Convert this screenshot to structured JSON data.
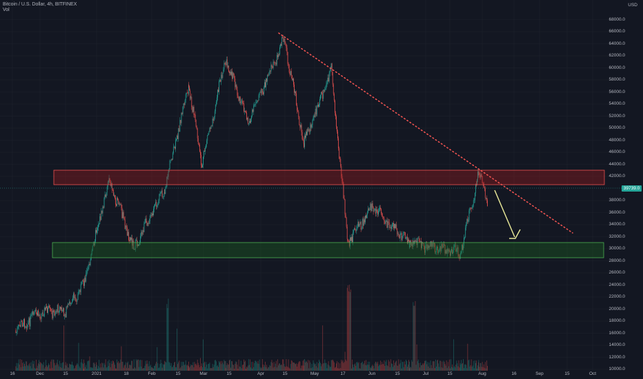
{
  "legend": {
    "title": "Bitcoin / U.S. Dollar, 4h, BITFINEX",
    "volume": "Vol"
  },
  "currency": "USD",
  "last_price": "39739.0",
  "colors": {
    "background": "#131722",
    "up": "#26a69a",
    "down": "#ef5350",
    "resistance_fill": "#b71c1c",
    "support_fill": "#1b5e20",
    "trendline": "#ef5350",
    "arrow": "#e6e697"
  },
  "price_axis": [
    "68000.0",
    "66000.0",
    "64000.0",
    "62000.0",
    "60000.0",
    "58000.0",
    "56000.0",
    "54000.0",
    "52000.0",
    "50000.0",
    "48000.0",
    "46000.0",
    "44000.0",
    "42000.0",
    "38000.0",
    "36000.0",
    "34000.0",
    "32000.0",
    "30000.0",
    "28000.0",
    "26000.0",
    "24000.0",
    "22000.0",
    "20000.0",
    "18000.0",
    "16000.0",
    "14000.0",
    "12000.0",
    "10000.0"
  ],
  "time_axis": [
    "16",
    "Dec",
    "15",
    "2021",
    "18",
    "Feb",
    "15",
    "Mar",
    "15",
    "Apr",
    "15",
    "May",
    "17",
    "Jun",
    "15",
    "Jul",
    "15",
    "Aug",
    "16",
    "Sep",
    "15",
    "Oct"
  ],
  "chart_data": {
    "type": "candlestick",
    "symbol": "Bitcoin / U.S. Dollar, 4h, BITFINEX",
    "ylim": [
      10000,
      70000
    ],
    "key_points": [
      {
        "date": "Nov 16",
        "price": 16500
      },
      {
        "date": "Dec 1",
        "price": 19500
      },
      {
        "date": "Dec 15",
        "price": 19800
      },
      {
        "date": "Dec 25",
        "price": 24000
      },
      {
        "date": "Jan 8",
        "price": 41500
      },
      {
        "date": "Jan 22",
        "price": 30000
      },
      {
        "date": "Feb 8",
        "price": 40000
      },
      {
        "date": "Feb 21",
        "price": 57000
      },
      {
        "date": "Feb 28",
        "price": 44000
      },
      {
        "date": "Mar 13",
        "price": 61500
      },
      {
        "date": "Mar 25",
        "price": 51000
      },
      {
        "date": "Apr 14",
        "price": 64800
      },
      {
        "date": "Apr 25",
        "price": 47500
      },
      {
        "date": "May 10",
        "price": 59500
      },
      {
        "date": "May 19",
        "price": 31000
      },
      {
        "date": "Jun 1",
        "price": 37000
      },
      {
        "date": "Jun 22",
        "price": 31000
      },
      {
        "date": "Jul 20",
        "price": 29300
      },
      {
        "date": "Jul 30",
        "price": 42500
      },
      {
        "date": "Aug 4",
        "price": 38000
      }
    ],
    "annotations": [
      {
        "type": "resistance_zone",
        "price_range": [
          40000,
          42800
        ]
      },
      {
        "type": "support_zone",
        "price_range": [
          28500,
          31000
        ]
      },
      {
        "type": "trendline",
        "from": {
          "date": "Apr 12",
          "price": 65500
        },
        "to": {
          "date": "Oct 10",
          "price": 33000
        }
      },
      {
        "type": "arrow",
        "direction": "down",
        "from_price": 39500,
        "to_price": 31300
      }
    ]
  }
}
